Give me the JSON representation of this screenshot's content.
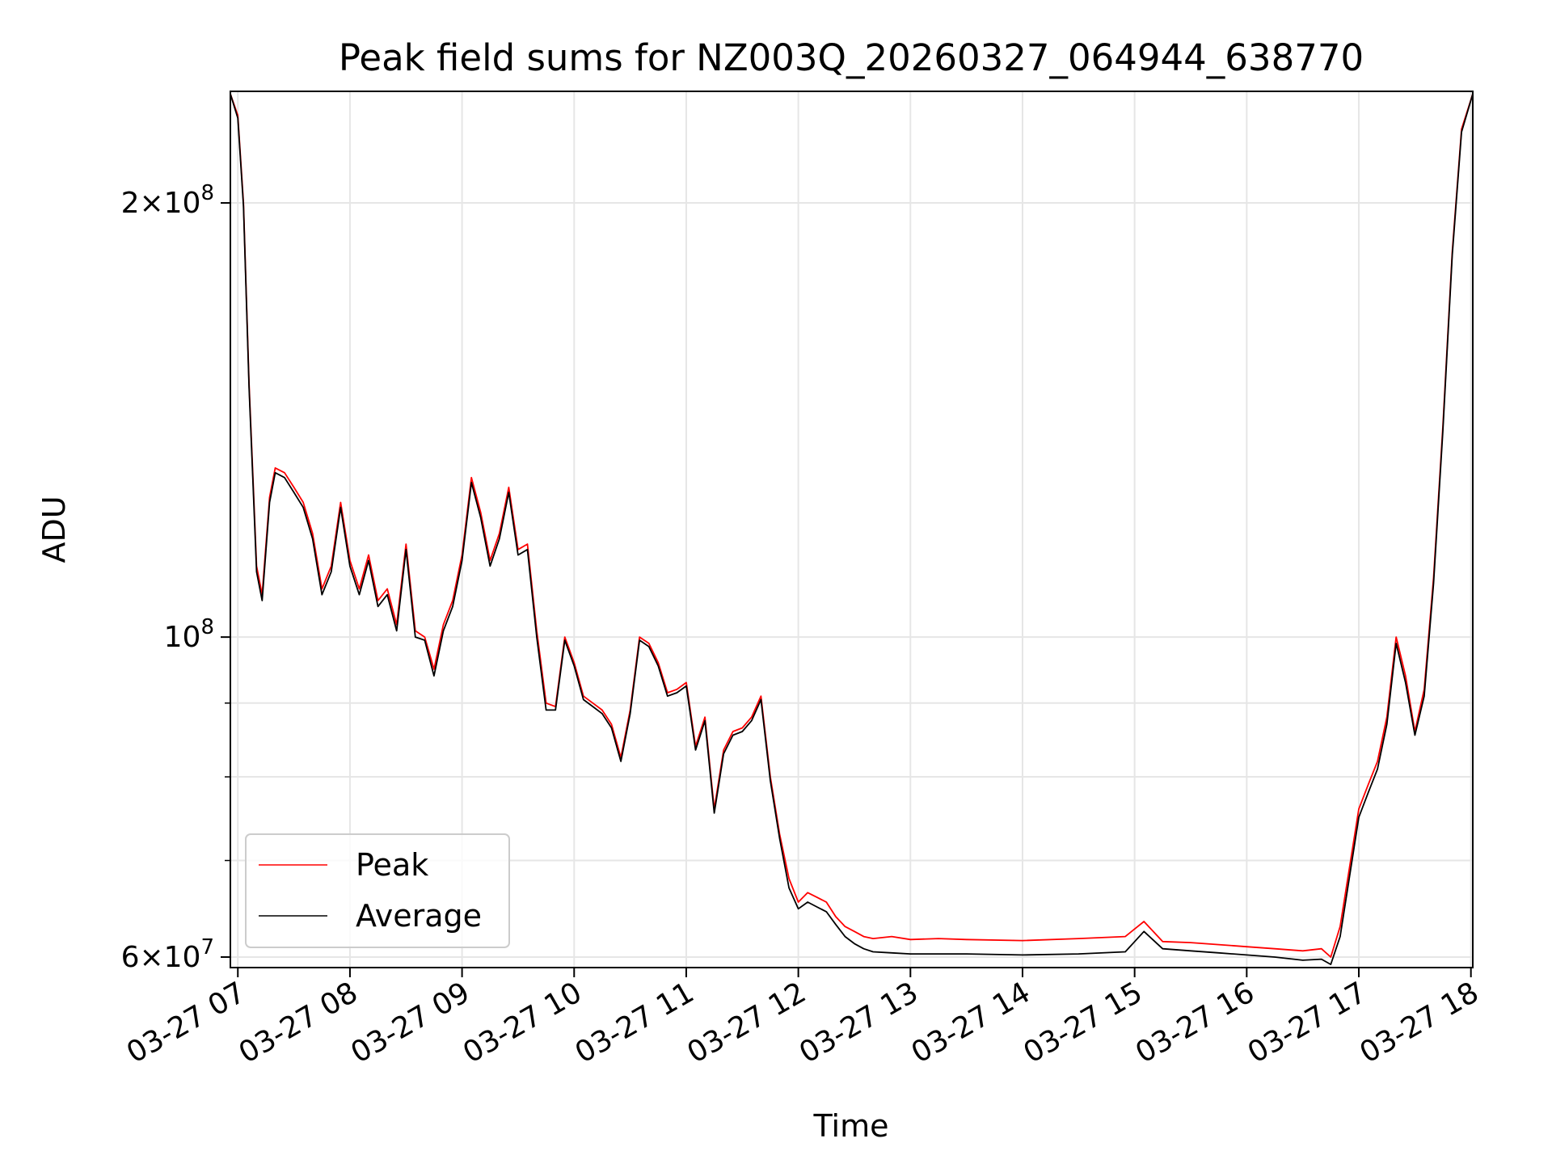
{
  "chart_data": {
    "type": "line",
    "title": "Peak field sums for NZ003Q_20260327_064944_638770",
    "xlabel": "Time",
    "ylabel": "ADU",
    "yscale": "log",
    "ylim": [
      59000000,
      239000000
    ],
    "xlim": [
      "03-27 06:56",
      "03-27 18:01"
    ],
    "grid": true,
    "legend_position": "lower-left",
    "x_ticks": [
      "03-27 07",
      "03-27 08",
      "03-27 09",
      "03-27 10",
      "03-27 11",
      "03-27 12",
      "03-27 13",
      "03-27 14",
      "03-27 15",
      "03-27 16",
      "03-27 17",
      "03-27 18"
    ],
    "y_major_ticks": [
      {
        "value": 60000000,
        "mant": "6",
        "exp": "7"
      },
      {
        "value": 100000000,
        "mant": "",
        "exp": "8"
      },
      {
        "value": 200000000,
        "mant": "2",
        "exp": "8"
      }
    ],
    "y_minor_grid": [
      70000000,
      80000000,
      90000000
    ],
    "series": [
      {
        "name": "Peak",
        "color": "#ff0000",
        "x": [
          "06:56",
          "07:00",
          "07:03",
          "07:06",
          "07:08",
          "07:10",
          "07:13",
          "07:17",
          "07:20",
          "07:25",
          "07:30",
          "07:35",
          "07:40",
          "07:45",
          "07:50",
          "07:55",
          "08:00",
          "08:05",
          "08:10",
          "08:15",
          "08:20",
          "08:25",
          "08:30",
          "08:35",
          "08:40",
          "08:45",
          "08:50",
          "08:55",
          "09:00",
          "09:05",
          "09:10",
          "09:15",
          "09:20",
          "09:25",
          "09:30",
          "09:35",
          "09:40",
          "09:45",
          "09:50",
          "09:55",
          "10:00",
          "10:05",
          "10:10",
          "10:15",
          "10:20",
          "10:25",
          "10:30",
          "10:35",
          "10:40",
          "10:45",
          "10:50",
          "10:55",
          "11:00",
          "11:05",
          "11:10",
          "11:15",
          "11:20",
          "11:25",
          "11:30",
          "11:35",
          "11:40",
          "11:45",
          "11:50",
          "11:55",
          "12:00",
          "12:05",
          "12:10",
          "12:15",
          "12:20",
          "12:25",
          "12:30",
          "12:35",
          "12:40",
          "12:50",
          "13:00",
          "13:15",
          "13:30",
          "14:00",
          "14:30",
          "14:55",
          "15:05",
          "15:15",
          "15:30",
          "15:45",
          "16:00",
          "16:15",
          "16:30",
          "16:40",
          "16:45",
          "16:50",
          "17:00",
          "17:05",
          "17:10",
          "17:15",
          "17:20",
          "17:25",
          "17:30",
          "17:35",
          "17:40",
          "17:45",
          "17:50",
          "17:55",
          "18:01"
        ],
        "values": [
          238000000,
          230000000,
          200000000,
          150000000,
          130000000,
          112000000,
          107000000,
          125000000,
          131000000,
          130000000,
          127000000,
          124000000,
          118000000,
          108000000,
          112000000,
          124000000,
          113000000,
          108000000,
          114000000,
          106000000,
          108000000,
          102000000,
          116000000,
          101000000,
          100000000,
          95000000,
          102000000,
          106000000,
          114000000,
          129000000,
          122000000,
          113000000,
          118000000,
          127000000,
          115000000,
          116000000,
          101000000,
          90000000,
          89500000,
          100000000,
          96000000,
          91000000,
          90000000,
          89000000,
          87000000,
          82500000,
          89000000,
          100000000,
          99000000,
          96000000,
          91500000,
          92000000,
          93000000,
          84000000,
          88000000,
          76000000,
          83500000,
          86000000,
          86500000,
          88000000,
          91000000,
          80000000,
          73000000,
          68000000,
          65500000,
          66500000,
          66000000,
          65500000,
          64000000,
          63000000,
          62500000,
          62000000,
          61800000,
          62000000,
          61700000,
          61800000,
          61700000,
          61600000,
          61800000,
          62000000,
          63500000,
          61500000,
          61400000,
          61200000,
          61000000,
          60800000,
          60600000,
          60800000,
          60000000,
          63000000,
          76000000,
          79000000,
          82000000,
          88000000,
          100000000,
          94000000,
          86000000,
          92000000,
          110000000,
          140000000,
          185000000,
          225000000,
          238000000
        ]
      },
      {
        "name": "Average",
        "color": "#000000",
        "x": [
          "06:56",
          "07:00",
          "07:03",
          "07:06",
          "07:08",
          "07:10",
          "07:13",
          "07:17",
          "07:20",
          "07:25",
          "07:30",
          "07:35",
          "07:40",
          "07:45",
          "07:50",
          "07:55",
          "08:00",
          "08:05",
          "08:10",
          "08:15",
          "08:20",
          "08:25",
          "08:30",
          "08:35",
          "08:40",
          "08:45",
          "08:50",
          "08:55",
          "09:00",
          "09:05",
          "09:10",
          "09:15",
          "09:20",
          "09:25",
          "09:30",
          "09:35",
          "09:40",
          "09:45",
          "09:50",
          "09:55",
          "10:00",
          "10:05",
          "10:10",
          "10:15",
          "10:20",
          "10:25",
          "10:30",
          "10:35",
          "10:40",
          "10:45",
          "10:50",
          "10:55",
          "11:00",
          "11:05",
          "11:10",
          "11:15",
          "11:20",
          "11:25",
          "11:30",
          "11:35",
          "11:40",
          "11:45",
          "11:50",
          "11:55",
          "12:00",
          "12:05",
          "12:10",
          "12:15",
          "12:20",
          "12:25",
          "12:30",
          "12:35",
          "12:40",
          "12:50",
          "13:00",
          "13:15",
          "13:30",
          "14:00",
          "14:30",
          "14:55",
          "15:05",
          "15:15",
          "15:30",
          "15:45",
          "16:00",
          "16:15",
          "16:30",
          "16:40",
          "16:45",
          "16:50",
          "17:00",
          "17:05",
          "17:10",
          "17:15",
          "17:20",
          "17:25",
          "17:30",
          "17:35",
          "17:40",
          "17:45",
          "17:50",
          "17:55",
          "18:01"
        ],
        "values": [
          238000000,
          229000000,
          199000000,
          149000000,
          129000000,
          111000000,
          106000000,
          124000000,
          130000000,
          129000000,
          126000000,
          123000000,
          117000000,
          107000000,
          111000000,
          123000000,
          112000000,
          107000000,
          113000000,
          105000000,
          107000000,
          101000000,
          115000000,
          100000000,
          99500000,
          94000000,
          101000000,
          105000000,
          113000000,
          128000000,
          121000000,
          112000000,
          117000000,
          126000000,
          114000000,
          115000000,
          100000000,
          89000000,
          89000000,
          99500000,
          95500000,
          90500000,
          89500000,
          88500000,
          86500000,
          82000000,
          88500000,
          99500000,
          98500000,
          95500000,
          91000000,
          91500000,
          92500000,
          83500000,
          87500000,
          75500000,
          83000000,
          85500000,
          86000000,
          87500000,
          90500000,
          79500000,
          72500000,
          67000000,
          64800000,
          65500000,
          65000000,
          64500000,
          63200000,
          62000000,
          61300000,
          60800000,
          60500000,
          60400000,
          60300000,
          60300000,
          60300000,
          60200000,
          60300000,
          60500000,
          62500000,
          60800000,
          60600000,
          60400000,
          60200000,
          60000000,
          59700000,
          59800000,
          59300000,
          62000000,
          75000000,
          78000000,
          81000000,
          87000000,
          99000000,
          93000000,
          85500000,
          91000000,
          109000000,
          139000000,
          184000000,
          224000000,
          238000000
        ]
      }
    ]
  }
}
